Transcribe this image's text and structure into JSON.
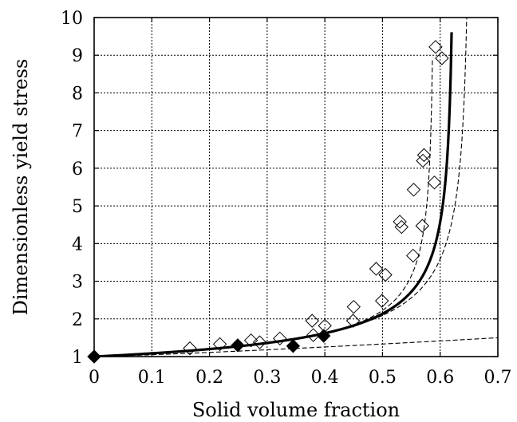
{
  "chart_data": {
    "type": "scatter",
    "title": "",
    "xlabel": "Solid volume fraction",
    "ylabel": "Dimensionless yield stress",
    "xlim": [
      0,
      0.7
    ],
    "ylim": [
      1,
      10
    ],
    "xticks": [
      "0",
      "0.1",
      "0.2",
      "0.3",
      "0.4",
      "0.5",
      "0.6",
      "0.7"
    ],
    "yticks": [
      "1",
      "2",
      "3",
      "4",
      "5",
      "6",
      "7",
      "8",
      "9",
      "10"
    ],
    "grid": true,
    "series": [
      {
        "marker": "open-diamond",
        "points": [
          [
            0.166,
            1.22
          ],
          [
            0.218,
            1.33
          ],
          [
            0.272,
            1.43
          ],
          [
            0.287,
            1.38
          ],
          [
            0.322,
            1.48
          ],
          [
            0.378,
            1.95
          ],
          [
            0.38,
            1.57
          ],
          [
            0.4,
            1.82
          ],
          [
            0.45,
            2.32
          ],
          [
            0.449,
            1.95
          ],
          [
            0.489,
            3.33
          ],
          [
            0.505,
            3.17
          ],
          [
            0.499,
            2.48
          ],
          [
            0.53,
            4.58
          ],
          [
            0.533,
            4.44
          ],
          [
            0.554,
            5.43
          ],
          [
            0.553,
            3.68
          ],
          [
            0.572,
            6.35
          ],
          [
            0.57,
            6.2
          ],
          [
            0.569,
            4.47
          ],
          [
            0.592,
            9.22
          ],
          [
            0.603,
            8.92
          ],
          [
            0.59,
            5.62
          ]
        ]
      },
      {
        "marker": "filled-diamond",
        "points": [
          [
            0.0,
            1.0
          ],
          [
            0.249,
            1.3
          ],
          [
            0.345,
            1.28
          ],
          [
            0.398,
            1.55
          ]
        ]
      }
    ],
    "curves": [
      {
        "style": "solid",
        "phi_max": 0.625
      },
      {
        "style": "dashed",
        "phi_max": 0.59
      },
      {
        "style": "dashed",
        "phi_max": 0.653
      },
      {
        "style": "dashed",
        "end": [
          0.7,
          1.5
        ]
      }
    ]
  }
}
